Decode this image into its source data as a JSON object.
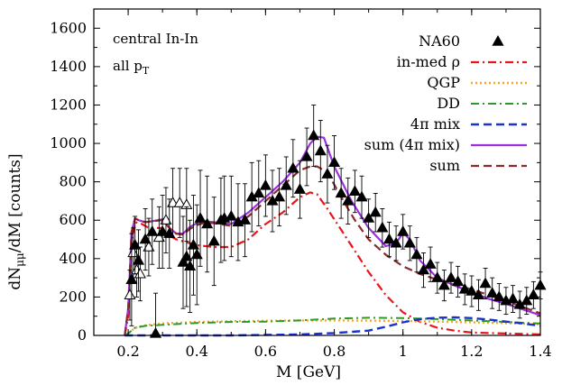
{
  "chart_data": {
    "type": "line",
    "xlabel": "M [GeV]",
    "ylabel": "dN",
    "ylabel_sub": "μμ",
    "ylabel_tail": "/dM [counts]",
    "xlim": [
      0.1,
      1.4
    ],
    "ylim": [
      0,
      1700
    ],
    "x_ticks": [
      0.2,
      0.4,
      0.6,
      0.8,
      1,
      1.2,
      1.4
    ],
    "x_tick_labels": [
      "0.2",
      "0.4",
      "0.6",
      "0.8",
      "1",
      "1.2",
      "1.4"
    ],
    "y_ticks": [
      0,
      200,
      400,
      600,
      800,
      1000,
      1200,
      1400,
      1600
    ],
    "y_tick_labels": [
      "0",
      "200",
      "400",
      "600",
      "800",
      "1000",
      "1200",
      "1400",
      "1600"
    ],
    "grid": false,
    "legend_position": "top-right",
    "annotations": {
      "line1": "central In-In",
      "line2_main": "all p",
      "line2_sub": "T"
    },
    "series": [
      {
        "name": "in-med ρ",
        "color": "#e8151a",
        "dash": "dashdot",
        "width": 2.2,
        "x": [
          0.19,
          0.2,
          0.21,
          0.22,
          0.24,
          0.26,
          0.28,
          0.3,
          0.32,
          0.34,
          0.36,
          0.4,
          0.45,
          0.5,
          0.55,
          0.6,
          0.65,
          0.7,
          0.73,
          0.75,
          0.78,
          0.82,
          0.86,
          0.9,
          0.95,
          1.0,
          1.05,
          1.1,
          1.15,
          1.2,
          1.3,
          1.4
        ],
        "y": [
          0,
          100,
          480,
          590,
          580,
          560,
          560,
          560,
          520,
          500,
          490,
          470,
          460,
          460,
          500,
          580,
          640,
          720,
          745,
          735,
          660,
          550,
          440,
          330,
          210,
          120,
          70,
          40,
          25,
          15,
          10,
          5
        ]
      },
      {
        "name": "QGP",
        "color": "#f5a623",
        "dash": "dotted",
        "width": 2.4,
        "x": [
          0.19,
          0.2,
          0.22,
          0.25,
          0.3,
          0.4,
          0.5,
          0.6,
          0.7,
          0.8,
          0.9,
          1.0,
          1.1,
          1.2,
          1.3,
          1.4
        ],
        "y": [
          0,
          10,
          40,
          52,
          62,
          70,
          74,
          76,
          78,
          78,
          77,
          75,
          72,
          68,
          64,
          58
        ]
      },
      {
        "name": "DD",
        "color": "#2a9a2a",
        "dash": "dashdot",
        "width": 2.0,
        "x": [
          0.19,
          0.2,
          0.22,
          0.25,
          0.3,
          0.4,
          0.5,
          0.6,
          0.7,
          0.8,
          0.9,
          1.0,
          1.1,
          1.2,
          1.3,
          1.4
        ],
        "y": [
          0,
          10,
          40,
          50,
          55,
          65,
          70,
          72,
          78,
          88,
          92,
          90,
          85,
          78,
          70,
          62
        ]
      },
      {
        "name": "4π mix",
        "color": "#1a33cc",
        "dash": "dashed",
        "width": 2.4,
        "x": [
          0.19,
          0.3,
          0.5,
          0.7,
          0.8,
          0.9,
          0.95,
          1.0,
          1.05,
          1.1,
          1.15,
          1.2,
          1.25,
          1.3,
          1.35,
          1.4
        ],
        "y": [
          0,
          0,
          0,
          5,
          12,
          25,
          45,
          68,
          85,
          92,
          94,
          90,
          82,
          72,
          62,
          50
        ]
      },
      {
        "name": "sum (4π mix)",
        "color": "#9b30e0",
        "dash": "solid",
        "width": 2.2,
        "x": [
          0.19,
          0.2,
          0.21,
          0.22,
          0.23,
          0.25,
          0.27,
          0.3,
          0.32,
          0.34,
          0.36,
          0.38,
          0.4,
          0.42,
          0.45,
          0.5,
          0.55,
          0.6,
          0.65,
          0.7,
          0.73,
          0.75,
          0.77,
          0.8,
          0.85,
          0.9,
          0.95,
          0.98,
          1.0,
          1.02,
          1.05,
          1.1,
          1.15,
          1.2,
          1.25,
          1.3,
          1.35,
          1.4
        ],
        "y": [
          0,
          140,
          540,
          610,
          600,
          590,
          595,
          605,
          560,
          530,
          530,
          565,
          585,
          595,
          590,
          580,
          640,
          720,
          800,
          900,
          1000,
          1035,
          1030,
          880,
          700,
          560,
          465,
          480,
          535,
          500,
          390,
          300,
          260,
          225,
          190,
          165,
          135,
          105
        ]
      },
      {
        "name": "sum",
        "color": "#8b2a2a",
        "dash": "dashed",
        "width": 2.2,
        "x": [
          0.19,
          0.2,
          0.21,
          0.22,
          0.23,
          0.25,
          0.27,
          0.3,
          0.32,
          0.34,
          0.36,
          0.38,
          0.4,
          0.42,
          0.45,
          0.5,
          0.55,
          0.6,
          0.65,
          0.7,
          0.73,
          0.75,
          0.78,
          0.82,
          0.86,
          0.9,
          0.95,
          1.0,
          1.05,
          1.1,
          1.2,
          1.3,
          1.4
        ],
        "y": [
          0,
          140,
          540,
          610,
          600,
          590,
          595,
          600,
          560,
          530,
          525,
          555,
          575,
          585,
          585,
          570,
          620,
          700,
          780,
          860,
          880,
          880,
          850,
          720,
          600,
          500,
          420,
          360,
          320,
          290,
          240,
          180,
          115
        ]
      }
    ],
    "data_series": {
      "name": "NA60",
      "filled": [
        {
          "x": 0.21,
          "y": 290,
          "err": 240
        },
        {
          "x": 0.22,
          "y": 470,
          "err": 150
        },
        {
          "x": 0.23,
          "y": 390,
          "err": 160
        },
        {
          "x": 0.25,
          "y": 500,
          "err": 160
        },
        {
          "x": 0.27,
          "y": 540,
          "err": 170
        },
        {
          "x": 0.28,
          "y": 10,
          "err": 210
        },
        {
          "x": 0.3,
          "y": 540,
          "err": 190
        },
        {
          "x": 0.32,
          "y": 530,
          "err": 180
        },
        {
          "x": 0.36,
          "y": 380,
          "err": 240
        },
        {
          "x": 0.37,
          "y": 410,
          "err": 260
        },
        {
          "x": 0.38,
          "y": 360,
          "err": 240
        },
        {
          "x": 0.39,
          "y": 470,
          "err": 260
        },
        {
          "x": 0.4,
          "y": 420,
          "err": 260
        },
        {
          "x": 0.41,
          "y": 610,
          "err": 250
        },
        {
          "x": 0.43,
          "y": 580,
          "err": 250
        },
        {
          "x": 0.45,
          "y": 490,
          "err": 230
        },
        {
          "x": 0.47,
          "y": 600,
          "err": 220
        },
        {
          "x": 0.48,
          "y": 610,
          "err": 220
        },
        {
          "x": 0.5,
          "y": 620,
          "err": 210
        },
        {
          "x": 0.52,
          "y": 590,
          "err": 200
        },
        {
          "x": 0.54,
          "y": 600,
          "err": 190
        },
        {
          "x": 0.56,
          "y": 720,
          "err": 180
        },
        {
          "x": 0.58,
          "y": 740,
          "err": 170
        },
        {
          "x": 0.6,
          "y": 780,
          "err": 160
        },
        {
          "x": 0.62,
          "y": 700,
          "err": 160
        },
        {
          "x": 0.64,
          "y": 720,
          "err": 150
        },
        {
          "x": 0.66,
          "y": 780,
          "err": 150
        },
        {
          "x": 0.68,
          "y": 870,
          "err": 150
        },
        {
          "x": 0.7,
          "y": 760,
          "err": 150
        },
        {
          "x": 0.72,
          "y": 930,
          "err": 150
        },
        {
          "x": 0.74,
          "y": 1040,
          "err": 160
        },
        {
          "x": 0.76,
          "y": 960,
          "err": 160
        },
        {
          "x": 0.78,
          "y": 840,
          "err": 150
        },
        {
          "x": 0.8,
          "y": 900,
          "err": 140
        },
        {
          "x": 0.82,
          "y": 740,
          "err": 130
        },
        {
          "x": 0.84,
          "y": 700,
          "err": 120
        },
        {
          "x": 0.86,
          "y": 750,
          "err": 110
        },
        {
          "x": 0.88,
          "y": 720,
          "err": 110
        },
        {
          "x": 0.9,
          "y": 610,
          "err": 100
        },
        {
          "x": 0.92,
          "y": 640,
          "err": 100
        },
        {
          "x": 0.94,
          "y": 560,
          "err": 100
        },
        {
          "x": 0.96,
          "y": 500,
          "err": 90
        },
        {
          "x": 0.98,
          "y": 480,
          "err": 90
        },
        {
          "x": 1.0,
          "y": 540,
          "err": 90
        },
        {
          "x": 1.02,
          "y": 480,
          "err": 90
        },
        {
          "x": 1.04,
          "y": 420,
          "err": 90
        },
        {
          "x": 1.06,
          "y": 340,
          "err": 90
        },
        {
          "x": 1.08,
          "y": 370,
          "err": 90
        },
        {
          "x": 1.1,
          "y": 300,
          "err": 80
        },
        {
          "x": 1.12,
          "y": 260,
          "err": 80
        },
        {
          "x": 1.14,
          "y": 300,
          "err": 80
        },
        {
          "x": 1.16,
          "y": 280,
          "err": 80
        },
        {
          "x": 1.18,
          "y": 240,
          "err": 80
        },
        {
          "x": 1.2,
          "y": 230,
          "err": 80
        },
        {
          "x": 1.22,
          "y": 210,
          "err": 80
        },
        {
          "x": 1.24,
          "y": 270,
          "err": 80
        },
        {
          "x": 1.26,
          "y": 220,
          "err": 80
        },
        {
          "x": 1.28,
          "y": 200,
          "err": 70
        },
        {
          "x": 1.3,
          "y": 180,
          "err": 70
        },
        {
          "x": 1.32,
          "y": 190,
          "err": 70
        },
        {
          "x": 1.34,
          "y": 160,
          "err": 70
        },
        {
          "x": 1.36,
          "y": 180,
          "err": 70
        },
        {
          "x": 1.38,
          "y": 210,
          "err": 70
        },
        {
          "x": 1.4,
          "y": 260,
          "err": 70
        }
      ],
      "open": [
        {
          "x": 0.205,
          "y": 210,
          "err": 130
        },
        {
          "x": 0.215,
          "y": 430,
          "err": 130
        },
        {
          "x": 0.225,
          "y": 340,
          "err": 140
        },
        {
          "x": 0.235,
          "y": 320,
          "err": 140
        },
        {
          "x": 0.26,
          "y": 460,
          "err": 150
        },
        {
          "x": 0.29,
          "y": 510,
          "err": 160
        },
        {
          "x": 0.31,
          "y": 600,
          "err": 170
        },
        {
          "x": 0.33,
          "y": 690,
          "err": 180
        },
        {
          "x": 0.35,
          "y": 690,
          "err": 180
        },
        {
          "x": 0.37,
          "y": 680,
          "err": 190
        }
      ]
    }
  }
}
